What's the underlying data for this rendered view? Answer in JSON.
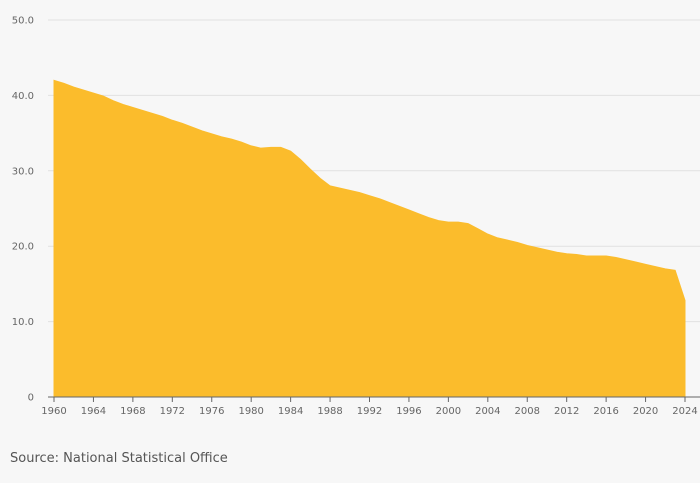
{
  "chart_data": {
    "type": "area",
    "title": "",
    "xlabel": "",
    "ylabel": "",
    "x": [
      1960,
      1961,
      1962,
      1963,
      1964,
      1965,
      1966,
      1967,
      1968,
      1969,
      1970,
      1971,
      1972,
      1973,
      1974,
      1975,
      1976,
      1977,
      1978,
      1979,
      1980,
      1981,
      1982,
      1983,
      1984,
      1985,
      1986,
      1987,
      1988,
      1989,
      1990,
      1991,
      1992,
      1993,
      1994,
      1995,
      1996,
      1997,
      1998,
      1999,
      2000,
      2001,
      2002,
      2003,
      2004,
      2005,
      2006,
      2007,
      2008,
      2009,
      2010,
      2011,
      2012,
      2013,
      2014,
      2015,
      2016,
      2017,
      2018,
      2019,
      2020,
      2021,
      2022,
      2023,
      2024
    ],
    "series": [
      {
        "values": [
          42.0,
          41.6,
          41.1,
          40.7,
          40.3,
          39.9,
          39.3,
          38.8,
          38.4,
          38.0,
          37.6,
          37.2,
          36.7,
          36.3,
          35.8,
          35.3,
          34.9,
          34.5,
          34.2,
          33.8,
          33.3,
          33.0,
          33.1,
          33.1,
          32.6,
          31.5,
          30.2,
          29.0,
          28.0,
          27.7,
          27.4,
          27.1,
          26.7,
          26.3,
          25.8,
          25.3,
          24.8,
          24.3,
          23.8,
          23.4,
          23.2,
          23.2,
          23.0,
          22.3,
          21.6,
          21.1,
          20.8,
          20.5,
          20.1,
          19.8,
          19.5,
          19.2,
          19.0,
          18.9,
          18.7,
          18.7,
          18.7,
          18.5,
          18.2,
          17.9,
          17.6,
          17.3,
          17.0,
          16.8,
          12.8
        ]
      }
    ],
    "xlim": [
      1960,
      2024
    ],
    "ylim": [
      0,
      50
    ],
    "x_ticks": [
      "1960",
      "1964",
      "1968",
      "1972",
      "1976",
      "1980",
      "1984",
      "1988",
      "1992",
      "1996",
      "2000",
      "2004",
      "2008",
      "2012",
      "2016",
      "2020",
      "2024"
    ],
    "y_ticks": [
      "0",
      "10.0",
      "20.0",
      "30.0",
      "40.0",
      "50.0"
    ],
    "grid": "horizontal",
    "legend": "none",
    "colors": {
      "area": "#fbbc2c",
      "grid": "#e1e1e1",
      "axis": "#666666",
      "background": "#f7f7f7"
    }
  },
  "source_text": "Source: National Statistical Office"
}
